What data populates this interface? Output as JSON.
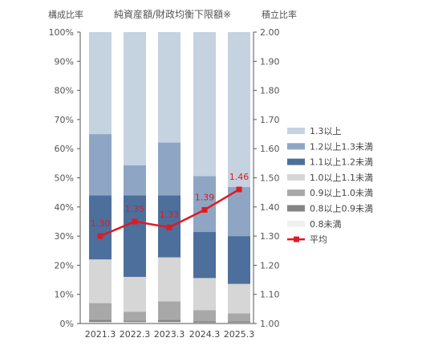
{
  "chart_data": {
    "type": "bar",
    "title": "純資産額/財政均衡下限額※",
    "y_left_label": "構成比率",
    "y_right_label": "積立比率",
    "categories": [
      "2021.3",
      "2022.3",
      "2023.3",
      "2024.3",
      "2025.3"
    ],
    "y_left_ticks": [
      "0%",
      "10%",
      "20%",
      "30%",
      "40%",
      "50%",
      "60%",
      "70%",
      "80%",
      "90%",
      "100%"
    ],
    "y_right_ticks": [
      "1.00",
      "1.10",
      "1.20",
      "1.30",
      "1.40",
      "1.50",
      "1.60",
      "1.70",
      "1.80",
      "1.90",
      "2.00"
    ],
    "y_left_range": [
      0,
      100
    ],
    "y_right_range": [
      1.0,
      2.0
    ],
    "stacked": true,
    "grid": false,
    "legend_position": "right",
    "series": [
      {
        "name": "0.8未満",
        "color": "#f0f0f0",
        "values": [
          0.5,
          0.5,
          0.5,
          0.3,
          0.3
        ]
      },
      {
        "name": "0.8以上0.9未満",
        "color": "#858585",
        "values": [
          0.8,
          0.5,
          0.8,
          0.5,
          0.4
        ]
      },
      {
        "name": "0.9以上1.0未満",
        "color": "#a8a8a8",
        "values": [
          5.7,
          3.0,
          6.3,
          3.8,
          2.8
        ]
      },
      {
        "name": "1.0以上1.1未満",
        "color": "#d6d6d6",
        "values": [
          15.0,
          12.0,
          15.1,
          11.0,
          10.1
        ]
      },
      {
        "name": "1.1以上1.2未満",
        "color": "#4d6f9b",
        "values": [
          22.0,
          28.0,
          21.3,
          15.8,
          16.4
        ]
      },
      {
        "name": "1.2以上1.3未満",
        "color": "#8ea6c4",
        "values": [
          21.0,
          10.3,
          18.1,
          19.2,
          16.9
        ]
      },
      {
        "name": "1.3以上",
        "color": "#c5d2e0",
        "values": [
          35.0,
          45.7,
          37.9,
          49.4,
          53.1
        ]
      }
    ],
    "line_series": {
      "name": "平均",
      "color": "#e01a22",
      "axis": "right",
      "values": [
        1.3,
        1.35,
        1.33,
        1.39,
        1.46
      ],
      "labels": [
        "1.30",
        "1.35",
        "1.33",
        "1.39",
        "1.46"
      ]
    },
    "legend_order": [
      "1.3以上",
      "1.2以上1.3未満",
      "1.1以上1.2未満",
      "1.0以上1.1未満",
      "0.9以上1.0未満",
      "0.8以上0.9未満",
      "0.8未満",
      "平均"
    ]
  }
}
